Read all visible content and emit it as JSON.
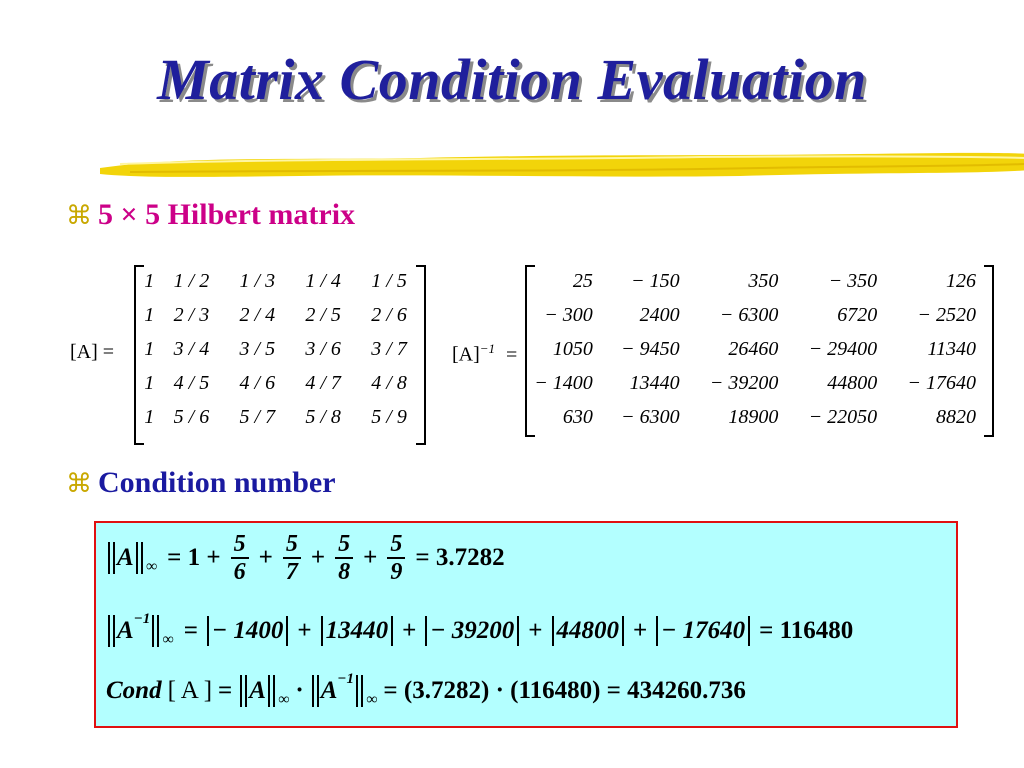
{
  "title": "Matrix Condition Evaluation",
  "bullets": {
    "hilbert": "5 × 5 Hilbert matrix",
    "condition": "Condition number"
  },
  "matrix_A": {
    "label": "[A] =",
    "rows": [
      [
        "1",
        "1 / 2",
        "1 / 3",
        "1 / 4",
        "1 / 5"
      ],
      [
        "1",
        "2 / 3",
        "2 / 4",
        "2 / 5",
        "2 / 6"
      ],
      [
        "1",
        "3 / 4",
        "3 / 5",
        "3 / 6",
        "3 / 7"
      ],
      [
        "1",
        "4 / 5",
        "4 / 6",
        "4 / 7",
        "4 / 8"
      ],
      [
        "1",
        "5 / 6",
        "5 / 7",
        "5 / 8",
        "5 / 9"
      ]
    ]
  },
  "matrix_Ainv": {
    "label": "[A]",
    "label_sup": "−1",
    "label_eq": "=",
    "rows": [
      [
        "25",
        "− 150",
        "350",
        "− 350",
        "126"
      ],
      [
        "− 300",
        "2400",
        "− 6300",
        "6720",
        "− 2520"
      ],
      [
        "1050",
        "− 9450",
        "26460",
        "− 29400",
        "11340"
      ],
      [
        "− 1400",
        "13440",
        "− 39200",
        "44800",
        "− 17640"
      ],
      [
        "630",
        "− 6300",
        "18900",
        "− 22050",
        "8820"
      ]
    ]
  },
  "equations": {
    "norm_A": {
      "lhs": "A",
      "sub": "∞",
      "fracs": [
        [
          "5",
          "6"
        ],
        [
          "5",
          "7"
        ],
        [
          "5",
          "8"
        ],
        [
          "5",
          "9"
        ]
      ],
      "prefix": "= 1 +",
      "result": "= 3.7282"
    },
    "norm_Ainv": {
      "lhs": "A",
      "sup": "−1",
      "sub": "∞",
      "terms": [
        "− 1400",
        "13440",
        "− 39200",
        "44800",
        "− 17640"
      ],
      "result": "= 116480"
    },
    "cond": {
      "lhs": "Cond",
      "arg": "[ A ]",
      "sub": "∞",
      "sup": "−1",
      "rhs": "= (3.7282) · (116480) = 434260.736"
    }
  },
  "colors": {
    "title": "#1f1f9c",
    "bullet1": "#cc0088",
    "bullet2": "#1a1aa0",
    "box_bg": "#b3ffff",
    "box_border": "#e01010",
    "brush": "#f2d40a"
  },
  "icons": {
    "bullet": "command-key-icon"
  }
}
